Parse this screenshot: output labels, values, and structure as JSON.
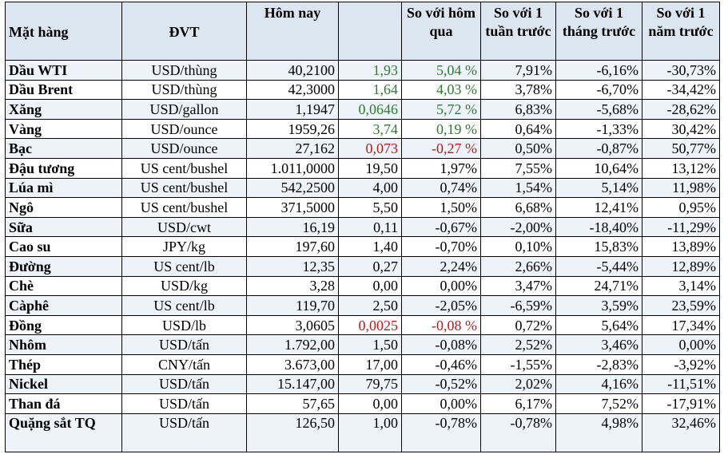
{
  "header": {
    "item": "Mặt hàng",
    "unit": "ĐVT",
    "today": "Hôm nay",
    "change": "",
    "vs_yesterday": "So với hôm qua",
    "vs_week": "So với 1 tuần trước",
    "vs_month": "So với 1 tháng trước",
    "vs_year": "So với 1 năm trước"
  },
  "colors": {
    "header_bg": "#dce6f1",
    "positive": "#2e7d32",
    "negative": "#b71c1c"
  },
  "rows": [
    {
      "item": "Dầu WTI",
      "unit": "USD/thùng",
      "today": "40,2100",
      "change": "1,93",
      "vs_yesterday": "5,04 %",
      "vs_week": "7,91%",
      "vs_month": "-6,16%",
      "vs_year": "-30,73%",
      "trend": "pos"
    },
    {
      "item": "Dầu Brent",
      "unit": "USD/thùng",
      "today": "42,3000",
      "change": "1,64",
      "vs_yesterday": "4,03 %",
      "vs_week": "3,78%",
      "vs_month": "-6,70%",
      "vs_year": "-34,42%",
      "trend": "pos"
    },
    {
      "item": "Xăng",
      "unit": "USD/gallon",
      "today": "1,1947",
      "change": "0,0646",
      "vs_yesterday": "5,72 %",
      "vs_week": "6,83%",
      "vs_month": "-5,68%",
      "vs_year": "-28,62%",
      "trend": "pos"
    },
    {
      "item": "Vàng",
      "unit": "USD/ounce",
      "today": "1959,26",
      "change": "3,74",
      "vs_yesterday": "0,19 %",
      "vs_week": "0,64%",
      "vs_month": "-1,33%",
      "vs_year": "30,42%",
      "trend": "pos"
    },
    {
      "item": "Bạc",
      "unit": "USD/ounce",
      "today": "27,162",
      "change": "0,073",
      "vs_yesterday": "-0,27 %",
      "vs_week": "0,50%",
      "vs_month": "-0,87%",
      "vs_year": "50,77%",
      "trend": "neg"
    },
    {
      "item": "Đậu tương",
      "unit": "US cent/bushel",
      "today": "1.011,0000",
      "change": "19,50",
      "vs_yesterday": "1,97%",
      "vs_week": "7,55%",
      "vs_month": "10,64%",
      "vs_year": "13,12%",
      "trend": ""
    },
    {
      "item": "Lúa mì",
      "unit": "US cent/bushel",
      "today": "542,2500",
      "change": "4,00",
      "vs_yesterday": "0,74%",
      "vs_week": "1,54%",
      "vs_month": "5,14%",
      "vs_year": "11,98%",
      "trend": ""
    },
    {
      "item": "Ngô",
      "unit": "US cent/bushel",
      "today": "371,5000",
      "change": "5,50",
      "vs_yesterday": "1,50%",
      "vs_week": "6,68%",
      "vs_month": "12,41%",
      "vs_year": "0,95%",
      "trend": ""
    },
    {
      "item": "Sữa",
      "unit": "USD/cwt",
      "today": "16,19",
      "change": "0,11",
      "vs_yesterday": "-0,67%",
      "vs_week": "-2,00%",
      "vs_month": "-18,40%",
      "vs_year": "-11,29%",
      "trend": ""
    },
    {
      "item": "Cao su",
      "unit": "JPY/kg",
      "today": "197,60",
      "change": "1,40",
      "vs_yesterday": "-0,70%",
      "vs_week": "0,10%",
      "vs_month": "15,83%",
      "vs_year": "13,89%",
      "trend": ""
    },
    {
      "item": "Đường",
      "unit": "US cent/lb",
      "today": "12,35",
      "change": "0,27",
      "vs_yesterday": "2,24%",
      "vs_week": "2,66%",
      "vs_month": "-5,44%",
      "vs_year": "12,89%",
      "trend": ""
    },
    {
      "item": "Chè",
      "unit": "USD/kg",
      "today": "3,28",
      "change": "0,00",
      "vs_yesterday": "0,00%",
      "vs_week": "3,47%",
      "vs_month": "24,71%",
      "vs_year": "3,14%",
      "trend": ""
    },
    {
      "item": "Càphê",
      "unit": "US cent/lb",
      "today": "119,70",
      "change": "2,50",
      "vs_yesterday": "-2,05%",
      "vs_week": "-6,59%",
      "vs_month": "3,59%",
      "vs_year": "23,59%",
      "trend": ""
    },
    {
      "item": "Đồng",
      "unit": "USD/lb",
      "today": "3,0605",
      "change": "0,0025",
      "vs_yesterday": "-0,08 %",
      "vs_week": "0,72%",
      "vs_month": "5,64%",
      "vs_year": "17,34%",
      "trend": "neg"
    },
    {
      "item": "Nhôm",
      "unit": "USD/tấn",
      "today": "1.792,00",
      "change": "1,50",
      "vs_yesterday": "-0,08%",
      "vs_week": "2,52%",
      "vs_month": "3,46%",
      "vs_year": "0,00%",
      "trend": ""
    },
    {
      "item": "Thép",
      "unit": "CNY/tấn",
      "today": "3.673,00",
      "change": "17,00",
      "vs_yesterday": "-0,46%",
      "vs_week": "-1,55%",
      "vs_month": "-2,83%",
      "vs_year": "-3,92%",
      "trend": ""
    },
    {
      "item": "Nickel",
      "unit": "USD/tấn",
      "today": "15.147,00",
      "change": "79,75",
      "vs_yesterday": "-0,52%",
      "vs_week": "2,02%",
      "vs_month": "4,16%",
      "vs_year": "-11,51%",
      "trend": ""
    },
    {
      "item": "Than đá",
      "unit": "USD/tấn",
      "today": "57,65",
      "change": "0,00",
      "vs_yesterday": "0,00%",
      "vs_week": "6,17%",
      "vs_month": "7,52%",
      "vs_year": "-17,91%",
      "trend": ""
    },
    {
      "item": "Quặng sắt TQ",
      "unit": "USD/tấn",
      "today": "126,50",
      "change": "1,00",
      "vs_yesterday": "-0,78%",
      "vs_week": "-0,78%",
      "vs_month": "4,98%",
      "vs_year": "32,46%",
      "trend": ""
    }
  ]
}
